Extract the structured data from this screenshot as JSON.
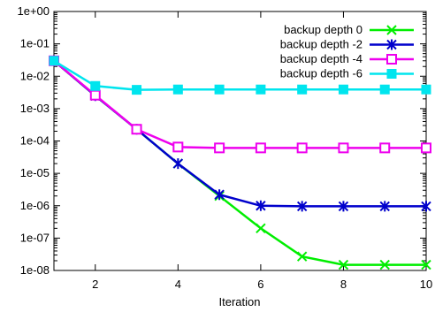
{
  "chart_data": {
    "type": "line",
    "title": "",
    "xlabel": "Iteration",
    "ylabel": "",
    "yscale": "log",
    "xlim": [
      1,
      10
    ],
    "ylim": [
      1e-08,
      1
    ],
    "xticks": [
      2,
      4,
      6,
      8,
      10
    ],
    "xtick_labels": [
      "2",
      "4",
      "6",
      "8",
      "10"
    ],
    "yticks": [
      1e-08,
      1e-07,
      1e-06,
      1e-05,
      0.0001,
      0.001,
      0.01,
      0.1,
      1
    ],
    "ytick_labels": [
      "1e-08",
      "1e-07",
      "1e-06",
      "1e-05",
      "1e-04",
      "1e-03",
      "1e-02",
      "1e-01",
      "1e+00"
    ],
    "grid": false,
    "legend_position": "top-right",
    "x": [
      1,
      2,
      3,
      4,
      5,
      6,
      7,
      8,
      9,
      10
    ],
    "series": [
      {
        "name": "backup depth 0",
        "color": "#00ee00",
        "marker": "x",
        "values": [
          0.03,
          0.0025,
          0.00023,
          2e-05,
          2e-06,
          2e-07,
          2.7e-08,
          1.5e-08,
          1.5e-08,
          1.5e-08
        ]
      },
      {
        "name": "backup depth -2",
        "color": "#0000cc",
        "marker": "star",
        "values": [
          0.03,
          0.0025,
          0.00023,
          2e-05,
          2.2e-06,
          1e-06,
          9.6e-07,
          9.6e-07,
          9.6e-07,
          9.6e-07
        ]
      },
      {
        "name": "backup depth -4",
        "color": "#ee00ee",
        "marker": "open-square",
        "values": [
          0.03,
          0.0026,
          0.00023,
          6.5e-05,
          6.1e-05,
          6.1e-05,
          6.1e-05,
          6.1e-05,
          6.1e-05,
          6.1e-05
        ]
      },
      {
        "name": "backup depth -6",
        "color": "#00e5ee",
        "marker": "filled-square",
        "values": [
          0.03,
          0.005,
          0.0038,
          0.0039,
          0.0039,
          0.0039,
          0.0039,
          0.0039,
          0.0039,
          0.0039
        ]
      }
    ]
  }
}
